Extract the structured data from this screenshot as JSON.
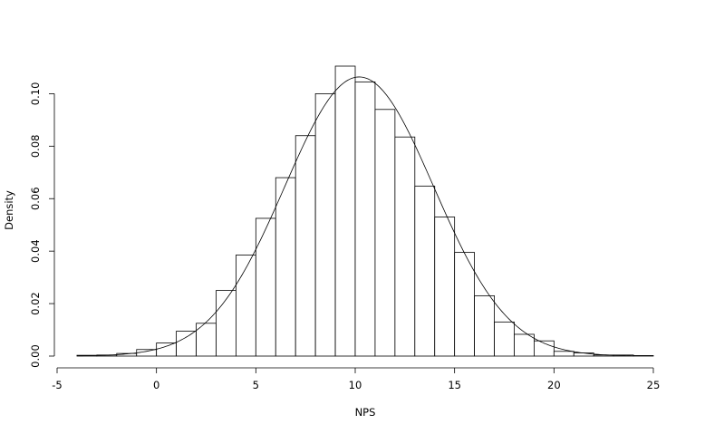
{
  "chart_data": {
    "type": "bar",
    "title": "",
    "xlabel": "NPS",
    "ylabel": "Density",
    "xlim": [
      -5,
      25
    ],
    "ylim": [
      0,
      0.11
    ],
    "xticks": [
      -5,
      0,
      5,
      10,
      15,
      20,
      25
    ],
    "yticks": [
      0.0,
      0.02,
      0.04,
      0.06,
      0.08,
      0.1
    ],
    "ytick_labels": [
      "0.00",
      "0.02",
      "0.04",
      "0.06",
      "0.08",
      "0.10"
    ],
    "grid": false,
    "bin_width": 1,
    "bins_start": [
      -4,
      -3,
      -2,
      -1,
      0,
      1,
      2,
      3,
      4,
      5,
      6,
      7,
      8,
      9,
      10,
      11,
      12,
      13,
      14,
      15,
      16,
      17,
      18,
      19,
      20,
      21,
      22,
      23,
      24
    ],
    "density": [
      0.0003,
      0.0004,
      0.001,
      0.0025,
      0.005,
      0.0095,
      0.0125,
      0.025,
      0.0385,
      0.0525,
      0.068,
      0.084,
      0.1,
      0.1105,
      0.1045,
      0.094,
      0.0835,
      0.0648,
      0.053,
      0.0395,
      0.023,
      0.013,
      0.0083,
      0.0058,
      0.0018,
      0.0012,
      0.0004,
      0.0004,
      0.0002
    ],
    "overlay_curve": {
      "type": "normal_density",
      "mean": 10.2,
      "sd": 3.75,
      "x_range": [
        -4,
        24
      ]
    }
  }
}
